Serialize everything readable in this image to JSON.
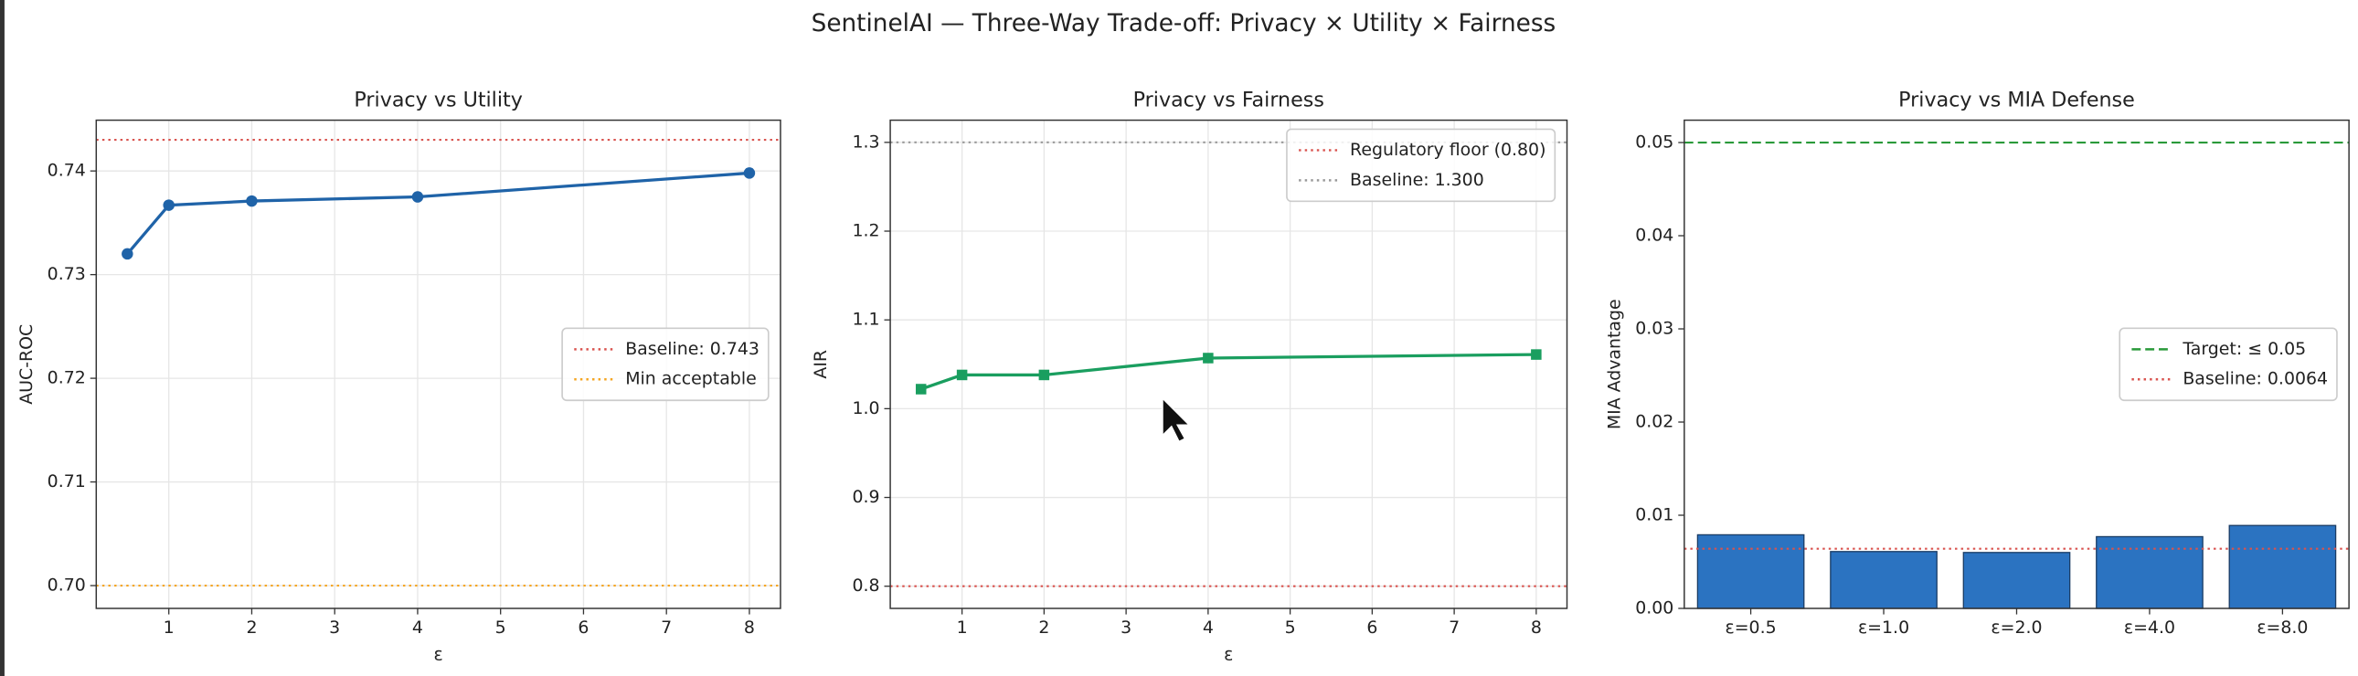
{
  "title": "SentinelAI — Three-Way Trade-off: Privacy × Utility × Fairness",
  "chart_data": [
    {
      "type": "line",
      "title": "Privacy vs Utility",
      "x_label": "ε",
      "y_label": "AUC-ROC",
      "x": [
        0.5,
        1,
        2,
        4,
        8
      ],
      "series": [
        {
          "color": "#1f63a8",
          "marker": "circle",
          "values": [
            0.732,
            0.7367,
            0.7371,
            0.7375,
            0.7398
          ]
        }
      ],
      "xlim": [
        0.125,
        8.375
      ],
      "xticks": [
        1,
        2,
        3,
        4,
        5,
        6,
        7,
        8
      ],
      "ylim": [
        0.6978,
        0.7449
      ],
      "yticks": [
        {
          "value": 0.7,
          "label": "0.70"
        },
        {
          "value": 0.71,
          "label": "0.71"
        },
        {
          "value": 0.72,
          "label": "0.72"
        },
        {
          "value": 0.73,
          "label": "0.73"
        },
        {
          "value": 0.74,
          "label": "0.74"
        }
      ],
      "reference_lines": [
        {
          "name": "Baseline: 0.743",
          "value": 0.743,
          "color": "#d9534f",
          "style": "dotted"
        },
        {
          "name": "Min acceptable",
          "value": 0.7,
          "color": "#f5a623",
          "style": "dotted"
        }
      ],
      "grid": true,
      "legend": "center right"
    },
    {
      "type": "line",
      "title": "Privacy vs Fairness",
      "x_label": "ε",
      "y_label": "AIR",
      "x": [
        0.5,
        1,
        2,
        4,
        8
      ],
      "series": [
        {
          "color": "#1a9e5f",
          "marker": "square",
          "values": [
            1.022,
            1.038,
            1.038,
            1.057,
            1.061
          ]
        }
      ],
      "xlim": [
        0.125,
        8.375
      ],
      "xticks": [
        1,
        2,
        3,
        4,
        5,
        6,
        7,
        8
      ],
      "ylim": [
        0.775,
        1.325
      ],
      "yticks": [
        0.8,
        0.9,
        {
          "value": 1,
          "label": "1.0"
        },
        1.1,
        1.2,
        1.3
      ],
      "reference_lines": [
        {
          "name": "Regulatory floor (0.80)",
          "value": 0.8,
          "color": "#d9534f",
          "style": "dotted"
        },
        {
          "name": "Baseline: 1.300",
          "value": 1.3,
          "color": "#999999",
          "style": "dotted"
        }
      ],
      "grid": true,
      "legend": "upper right"
    },
    {
      "type": "bar",
      "title": "Privacy vs MIA Defense",
      "y_label": "MIA Advantage",
      "categories": [
        "ε=0.5",
        "ε=1.0",
        "ε=2.0",
        "ε=4.0",
        "ε=8.0"
      ],
      "values": [
        0.0079,
        0.0061,
        0.006,
        0.0077,
        0.0089
      ],
      "color": "#2b73c1",
      "ylim": [
        0,
        0.0524
      ],
      "yticks": [
        {
          "value": 0,
          "label": "0.00"
        },
        0.01,
        0.02,
        0.03,
        0.04,
        0.05
      ],
      "reference_lines": [
        {
          "name": "Target: ≤ 0.05",
          "value": 0.05,
          "color": "#2a9a3a",
          "style": "dashed"
        },
        {
          "name": "Baseline: 0.0064",
          "value": 0.0064,
          "color": "#d9534f",
          "style": "dotted"
        }
      ],
      "grid": false,
      "legend": "center right"
    }
  ]
}
